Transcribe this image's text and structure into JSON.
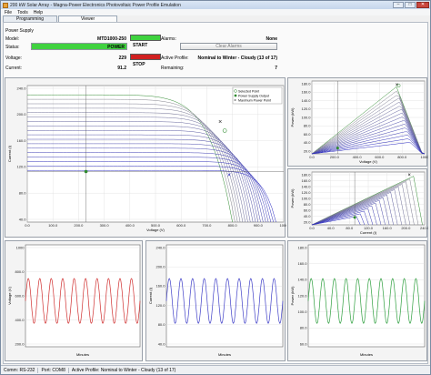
{
  "window": {
    "title": "200 kW Solar Array - Magna-Power Electronics Photovoltaic Power Profile Emulation"
  },
  "menu": [
    "File",
    "Tools",
    "Help"
  ],
  "tabs": [
    "Programming",
    "Viewer"
  ],
  "power_supply": {
    "group_label": "Power Supply",
    "model_label": "Model:",
    "model_value": "MTD1000-250",
    "status_label": "Status:",
    "status_value": "POWER",
    "voltage_label": "Voltage:",
    "voltage_value": "229",
    "current_label": "Current:",
    "current_value": "91.2",
    "start_label": "START",
    "stop_label": "STOP",
    "alarms_label": "Alarms:",
    "alarms_value": "None",
    "clear_alarms": "Clear Alarms",
    "profile_label": "Active Profile:",
    "profile_value": "Nominal to Winter - Cloudy (13 of 17)",
    "remaining_label": "Remaining:",
    "remaining_value": "7"
  },
  "legend": {
    "selected_point": "Selected Point",
    "power_supply_output": "Power Supply Output",
    "max_power_point": "Maximum Power Point"
  },
  "main_chart": {
    "xlabel": "Voltage (V)",
    "ylabel": "Current (I)",
    "xticks": [
      "0.0",
      "100.0",
      "200.0",
      "300.0",
      "400.0",
      "500.0",
      "600.0",
      "700.0",
      "800.0",
      "900.0",
      "1000"
    ],
    "yticks": [
      "240.0",
      "200.0",
      "160.0",
      "120.0",
      "80.0",
      "40.0"
    ]
  },
  "pv_chart": {
    "xlabel": "Voltage (V)",
    "ylabel": "Power (kW)",
    "xticks": [
      "0.0",
      "200.0",
      "400.0",
      "600.0",
      "800.0",
      "1000"
    ],
    "yticks": [
      "180.0",
      "160.0",
      "140.0",
      "120.0",
      "100.0",
      "80.0",
      "60.0",
      "40.0",
      "20.0"
    ]
  },
  "pi_chart": {
    "xlabel": "Current (I)",
    "ylabel": "Power (kW)",
    "xticks": [
      "0.0",
      "40.0",
      "80.0",
      "120.0",
      "160.0",
      "200.0",
      "240.0"
    ],
    "yticks": [
      "180.0",
      "160.0",
      "140.0",
      "120.0",
      "100.0",
      "80.0",
      "60.0",
      "40.0",
      "20.0"
    ]
  },
  "wave_charts": [
    {
      "ylabel": "Voltage (V)",
      "xlabel": "Minutes",
      "yticks": [
        "1000",
        "800.0",
        "600.0",
        "400.0",
        "200.0"
      ],
      "color": "#d03030"
    },
    {
      "ylabel": "Current (I)",
      "xlabel": "Minutes",
      "yticks": [
        "240.0",
        "200.0",
        "160.0",
        "120.0",
        "80.0",
        "40.0"
      ],
      "color": "#4040c8"
    },
    {
      "ylabel": "Power (kW)",
      "xlabel": "Minutes",
      "yticks": [
        "180.0",
        "160.0",
        "140.0",
        "120.0",
        "100.0",
        "80.0",
        "60.0"
      ],
      "color": "#30a040"
    }
  ],
  "status_bar": {
    "comm": "Comm: RS-232",
    "port": "Port: COM8",
    "profile": "Active Profile: Nominal to Winter - Cloudy (13 of 17)"
  },
  "colors": {
    "green": "#3fd23f",
    "red": "#d02020",
    "curve_grey": "#8a8a8a",
    "curve_blue": "#2828c0",
    "curve_green": "#2f8a2f"
  }
}
